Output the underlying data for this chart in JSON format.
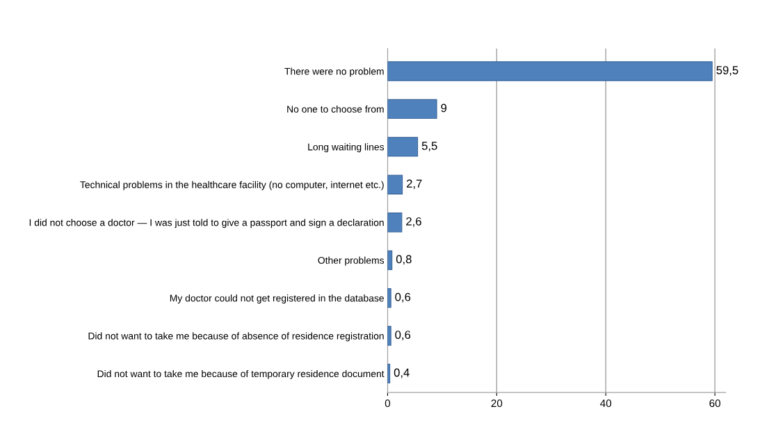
{
  "chart_data": {
    "type": "bar",
    "orientation": "horizontal",
    "categories": [
      "There were no problem",
      "No one to choose from",
      "Long waiting lines",
      "Technical problems in the healthcare facility (no computer, internet etc.)",
      "I did not choose a doctor — I was just told to give a passport and sign a declaration",
      "Other problems",
      "My doctor could not get registered in the database",
      "Did not want to take me because of absence of residence registration",
      "Did not want to take me because of temporary residence document"
    ],
    "values": [
      59.5,
      9,
      5.5,
      2.7,
      2.6,
      0.8,
      0.6,
      0.6,
      0.4
    ],
    "value_labels": [
      "59,5",
      "9",
      "5,5",
      "2,7",
      "2,6",
      "0,8",
      "0,6",
      "0,6",
      "0,4"
    ],
    "color": "#4f81bd",
    "xlim": [
      0,
      62
    ],
    "xticks": [
      0,
      20,
      40,
      60
    ],
    "grid": "x"
  }
}
